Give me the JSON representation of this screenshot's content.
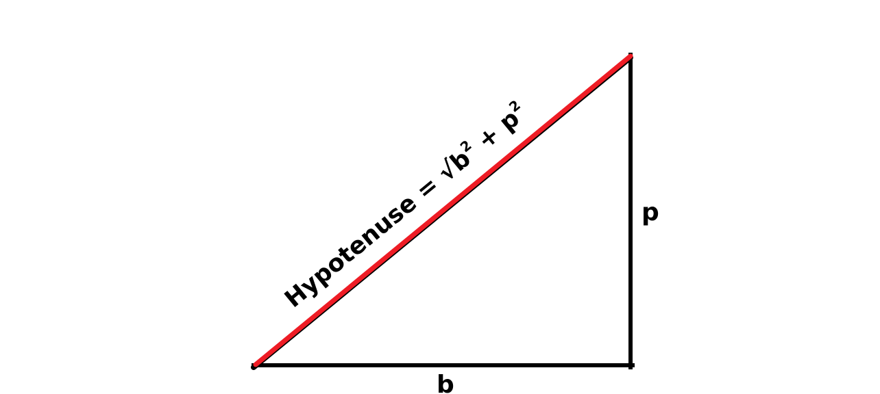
{
  "diagram": {
    "hypotenuse_label": "Hypotenuse = √b",
    "superscript": "2",
    "plus": "+",
    "p_term": "p",
    "base_label": "b",
    "perpendicular_label": "p"
  },
  "colors": {
    "background": "#ffffff",
    "legs": "#000000",
    "hypotenuse": "#ee1c25",
    "text": "#000000"
  }
}
